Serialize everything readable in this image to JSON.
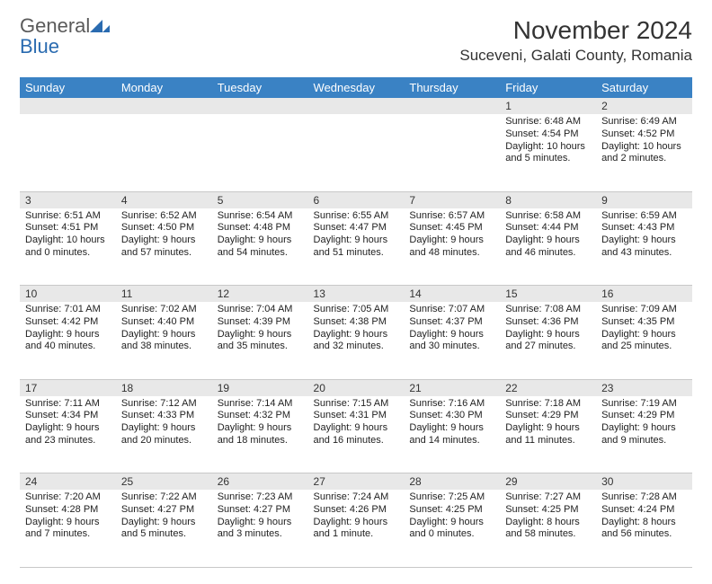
{
  "logo": {
    "general": "General",
    "blue": "Blue"
  },
  "title": "November 2024",
  "location": "Suceveni, Galati County, Romania",
  "colors": {
    "header_bg": "#3a82c4",
    "header_fg": "#ffffff",
    "daynum_bg": "#e8e8e8",
    "border": "#c8c8c8",
    "text": "#222222",
    "logo_gray": "#5a5a5a",
    "logo_blue": "#2a6bb0"
  },
  "dayNames": [
    "Sunday",
    "Monday",
    "Tuesday",
    "Wednesday",
    "Thursday",
    "Friday",
    "Saturday"
  ],
  "weeks": [
    [
      null,
      null,
      null,
      null,
      null,
      {
        "n": "1",
        "sr": "Sunrise: 6:48 AM",
        "ss": "Sunset: 4:54 PM",
        "dl": "Daylight: 10 hours and 5 minutes."
      },
      {
        "n": "2",
        "sr": "Sunrise: 6:49 AM",
        "ss": "Sunset: 4:52 PM",
        "dl": "Daylight: 10 hours and 2 minutes."
      }
    ],
    [
      {
        "n": "3",
        "sr": "Sunrise: 6:51 AM",
        "ss": "Sunset: 4:51 PM",
        "dl": "Daylight: 10 hours and 0 minutes."
      },
      {
        "n": "4",
        "sr": "Sunrise: 6:52 AM",
        "ss": "Sunset: 4:50 PM",
        "dl": "Daylight: 9 hours and 57 minutes."
      },
      {
        "n": "5",
        "sr": "Sunrise: 6:54 AM",
        "ss": "Sunset: 4:48 PM",
        "dl": "Daylight: 9 hours and 54 minutes."
      },
      {
        "n": "6",
        "sr": "Sunrise: 6:55 AM",
        "ss": "Sunset: 4:47 PM",
        "dl": "Daylight: 9 hours and 51 minutes."
      },
      {
        "n": "7",
        "sr": "Sunrise: 6:57 AM",
        "ss": "Sunset: 4:45 PM",
        "dl": "Daylight: 9 hours and 48 minutes."
      },
      {
        "n": "8",
        "sr": "Sunrise: 6:58 AM",
        "ss": "Sunset: 4:44 PM",
        "dl": "Daylight: 9 hours and 46 minutes."
      },
      {
        "n": "9",
        "sr": "Sunrise: 6:59 AM",
        "ss": "Sunset: 4:43 PM",
        "dl": "Daylight: 9 hours and 43 minutes."
      }
    ],
    [
      {
        "n": "10",
        "sr": "Sunrise: 7:01 AM",
        "ss": "Sunset: 4:42 PM",
        "dl": "Daylight: 9 hours and 40 minutes."
      },
      {
        "n": "11",
        "sr": "Sunrise: 7:02 AM",
        "ss": "Sunset: 4:40 PM",
        "dl": "Daylight: 9 hours and 38 minutes."
      },
      {
        "n": "12",
        "sr": "Sunrise: 7:04 AM",
        "ss": "Sunset: 4:39 PM",
        "dl": "Daylight: 9 hours and 35 minutes."
      },
      {
        "n": "13",
        "sr": "Sunrise: 7:05 AM",
        "ss": "Sunset: 4:38 PM",
        "dl": "Daylight: 9 hours and 32 minutes."
      },
      {
        "n": "14",
        "sr": "Sunrise: 7:07 AM",
        "ss": "Sunset: 4:37 PM",
        "dl": "Daylight: 9 hours and 30 minutes."
      },
      {
        "n": "15",
        "sr": "Sunrise: 7:08 AM",
        "ss": "Sunset: 4:36 PM",
        "dl": "Daylight: 9 hours and 27 minutes."
      },
      {
        "n": "16",
        "sr": "Sunrise: 7:09 AM",
        "ss": "Sunset: 4:35 PM",
        "dl": "Daylight: 9 hours and 25 minutes."
      }
    ],
    [
      {
        "n": "17",
        "sr": "Sunrise: 7:11 AM",
        "ss": "Sunset: 4:34 PM",
        "dl": "Daylight: 9 hours and 23 minutes."
      },
      {
        "n": "18",
        "sr": "Sunrise: 7:12 AM",
        "ss": "Sunset: 4:33 PM",
        "dl": "Daylight: 9 hours and 20 minutes."
      },
      {
        "n": "19",
        "sr": "Sunrise: 7:14 AM",
        "ss": "Sunset: 4:32 PM",
        "dl": "Daylight: 9 hours and 18 minutes."
      },
      {
        "n": "20",
        "sr": "Sunrise: 7:15 AM",
        "ss": "Sunset: 4:31 PM",
        "dl": "Daylight: 9 hours and 16 minutes."
      },
      {
        "n": "21",
        "sr": "Sunrise: 7:16 AM",
        "ss": "Sunset: 4:30 PM",
        "dl": "Daylight: 9 hours and 14 minutes."
      },
      {
        "n": "22",
        "sr": "Sunrise: 7:18 AM",
        "ss": "Sunset: 4:29 PM",
        "dl": "Daylight: 9 hours and 11 minutes."
      },
      {
        "n": "23",
        "sr": "Sunrise: 7:19 AM",
        "ss": "Sunset: 4:29 PM",
        "dl": "Daylight: 9 hours and 9 minutes."
      }
    ],
    [
      {
        "n": "24",
        "sr": "Sunrise: 7:20 AM",
        "ss": "Sunset: 4:28 PM",
        "dl": "Daylight: 9 hours and 7 minutes."
      },
      {
        "n": "25",
        "sr": "Sunrise: 7:22 AM",
        "ss": "Sunset: 4:27 PM",
        "dl": "Daylight: 9 hours and 5 minutes."
      },
      {
        "n": "26",
        "sr": "Sunrise: 7:23 AM",
        "ss": "Sunset: 4:27 PM",
        "dl": "Daylight: 9 hours and 3 minutes."
      },
      {
        "n": "27",
        "sr": "Sunrise: 7:24 AM",
        "ss": "Sunset: 4:26 PM",
        "dl": "Daylight: 9 hours and 1 minute."
      },
      {
        "n": "28",
        "sr": "Sunrise: 7:25 AM",
        "ss": "Sunset: 4:25 PM",
        "dl": "Daylight: 9 hours and 0 minutes."
      },
      {
        "n": "29",
        "sr": "Sunrise: 7:27 AM",
        "ss": "Sunset: 4:25 PM",
        "dl": "Daylight: 8 hours and 58 minutes."
      },
      {
        "n": "30",
        "sr": "Sunrise: 7:28 AM",
        "ss": "Sunset: 4:24 PM",
        "dl": "Daylight: 8 hours and 56 minutes."
      }
    ]
  ]
}
